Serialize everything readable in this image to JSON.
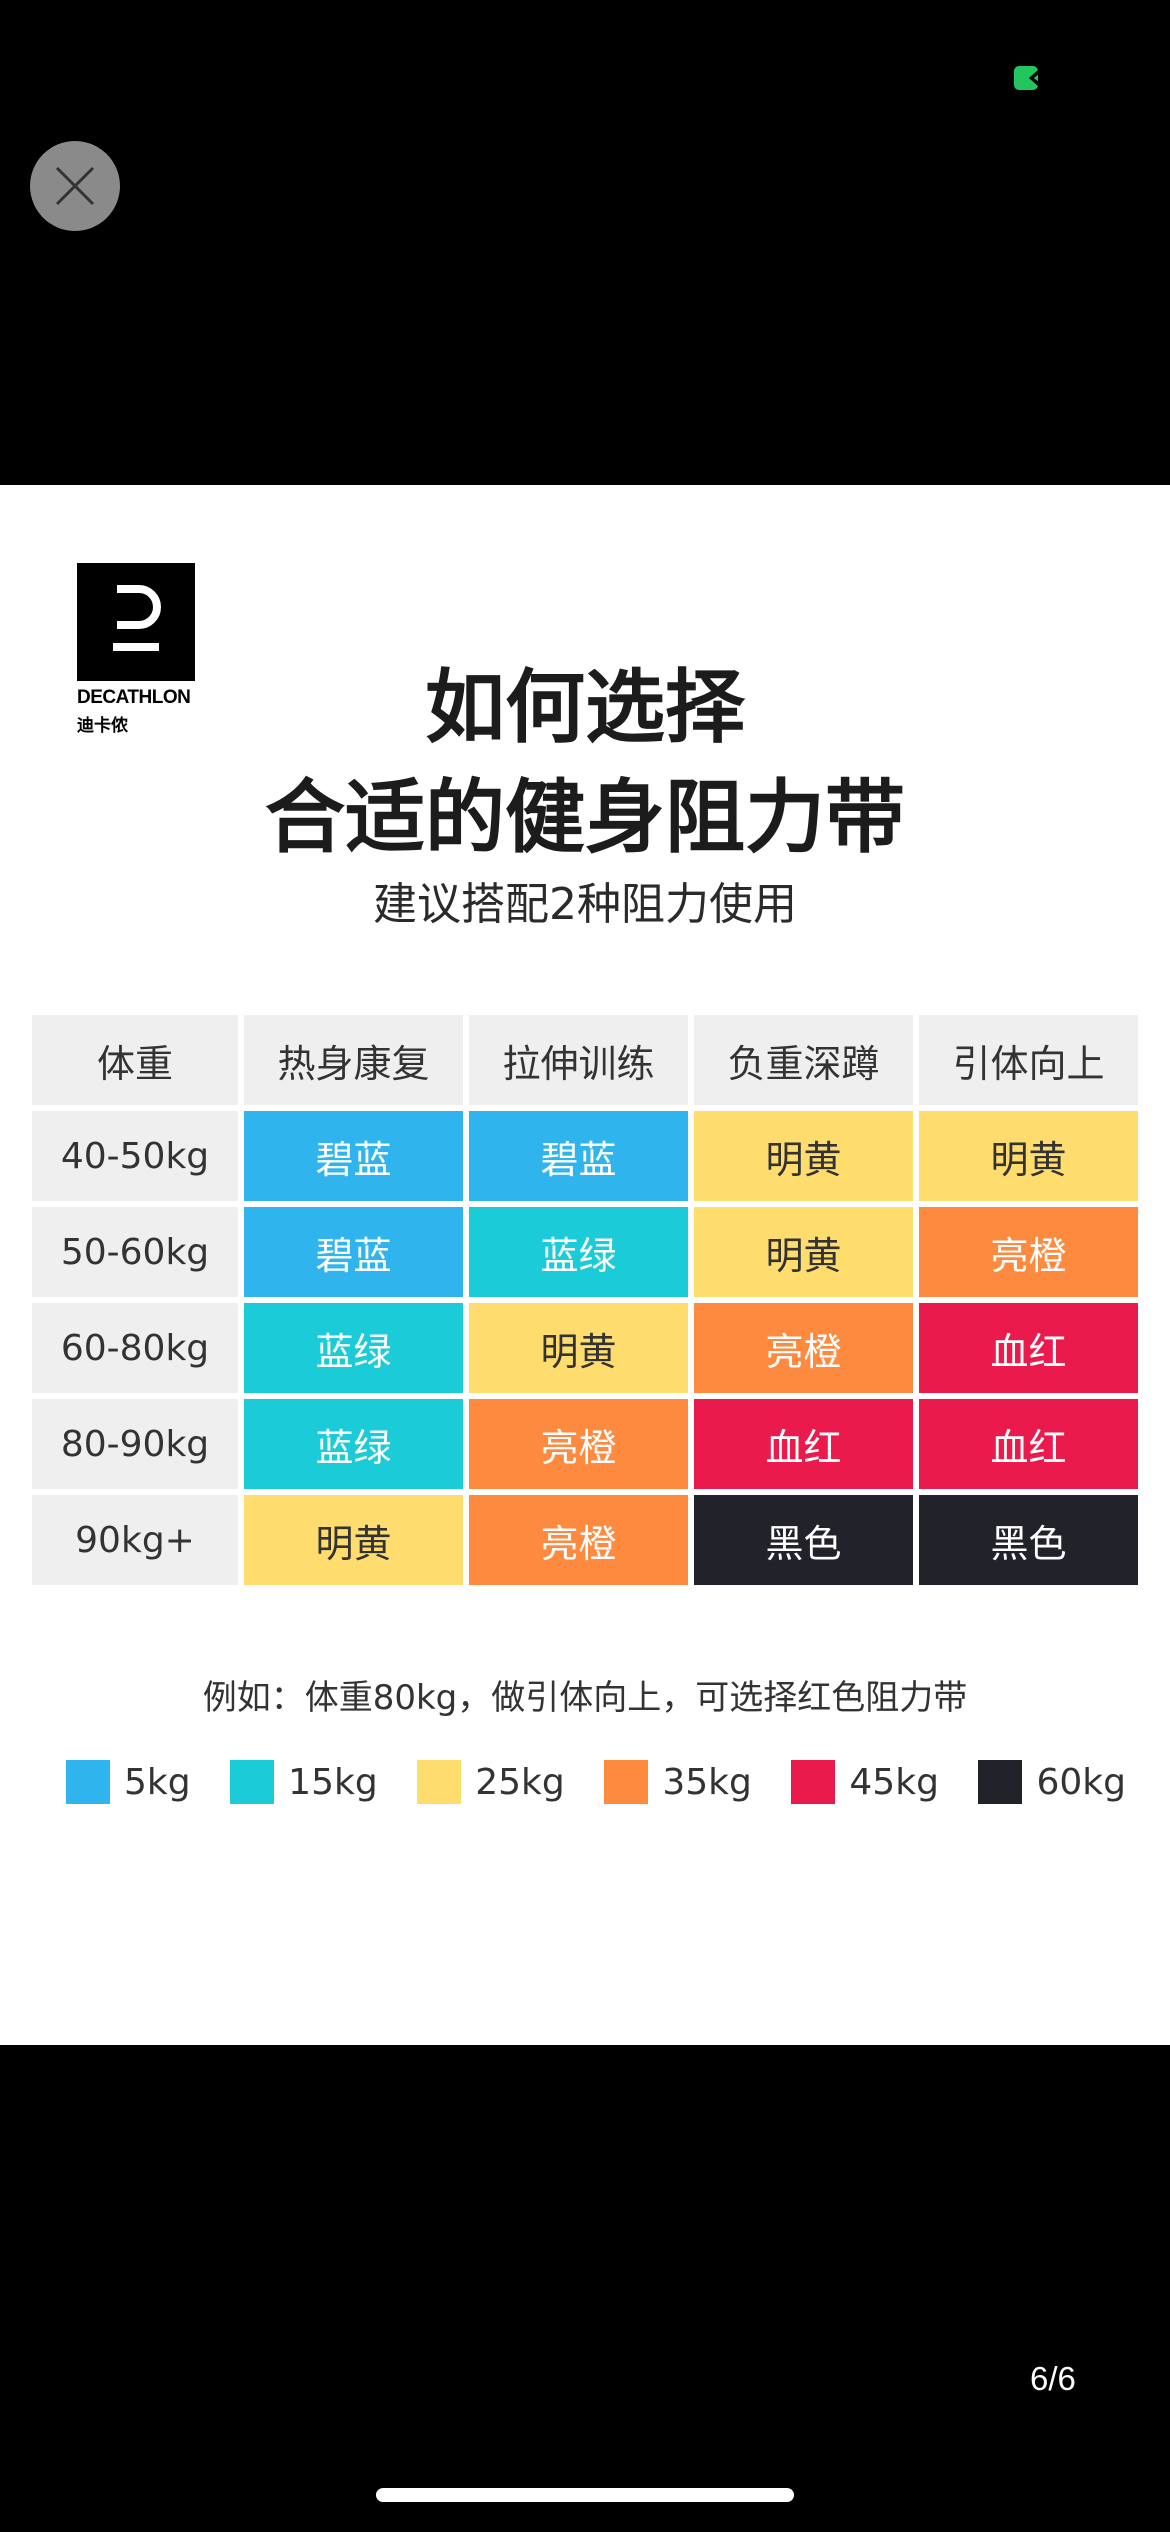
{
  "product_image": {
    "logo": {
      "brand": "DECATHLON",
      "brand_cn": "迪卡侬"
    },
    "title_line1": "如何选择",
    "title_line2": "合适的健身阻力带",
    "subtitle": "建议搭配2种阻力使用",
    "table": {
      "headers": [
        "体重",
        "热身康复",
        "拉伸训练",
        "负重深蹲",
        "引体向上"
      ],
      "rows": [
        {
          "weight": "40-50kg",
          "cells": [
            "碧蓝",
            "碧蓝",
            "明黄",
            "明黄"
          ]
        },
        {
          "weight": "50-60kg",
          "cells": [
            "碧蓝",
            "蓝绿",
            "明黄",
            "亮橙"
          ]
        },
        {
          "weight": "60-80kg",
          "cells": [
            "蓝绿",
            "明黄",
            "亮橙",
            "血红"
          ]
        },
        {
          "weight": "80-90kg",
          "cells": [
            "蓝绿",
            "亮橙",
            "血红",
            "血红"
          ]
        },
        {
          "weight": "90kg+",
          "cells": [
            "明黄",
            "亮橙",
            "黑色",
            "黑色"
          ]
        }
      ]
    },
    "example": "例如：体重80kg，做引体向上，可选择红色阻力带",
    "legend": [
      {
        "label": "5kg",
        "color": "#2fb4ee"
      },
      {
        "label": "15kg",
        "color": "#1bcbd8"
      },
      {
        "label": "25kg",
        "color": "#fedc6e"
      },
      {
        "label": "35kg",
        "color": "#fe8a3f"
      },
      {
        "label": "45kg",
        "color": "#ea1a4c"
      },
      {
        "label": "60kg",
        "color": "#22222a"
      }
    ],
    "color_map": {
      "碧蓝": {
        "bg": "#2fb4ee",
        "fg": "#ffffff"
      },
      "蓝绿": {
        "bg": "#1bcbd8",
        "fg": "#ffffff"
      },
      "明黄": {
        "bg": "#fedc6e",
        "fg": "#333333"
      },
      "亮橙": {
        "bg": "#fe8a3f",
        "fg": "#ffffff"
      },
      "血红": {
        "bg": "#ea1a4c",
        "fg": "#ffffff"
      },
      "黑色": {
        "bg": "#22222a",
        "fg": "#ffffff"
      }
    }
  },
  "viewer": {
    "page_counter": "6/6",
    "close_icon": "close-icon",
    "status_indicator_color": "#22c55e"
  }
}
